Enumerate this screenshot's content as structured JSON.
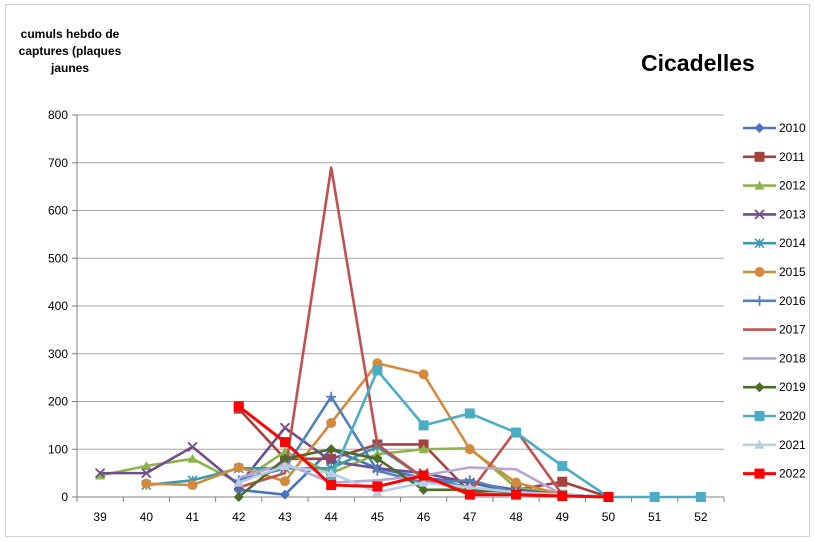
{
  "chart_data": {
    "type": "line",
    "title": "Cicadelles",
    "ylabel": "cumuls hebdo de captures (plaques jaunes",
    "xlabel": "",
    "x": [
      39,
      40,
      41,
      42,
      43,
      44,
      45,
      46,
      47,
      48,
      49,
      50,
      51,
      52
    ],
    "ylim": [
      0,
      800
    ],
    "yticks": [
      0,
      100,
      200,
      300,
      400,
      500,
      600,
      700,
      800
    ],
    "grid": "horizontal",
    "legend_position": "right",
    "series": [
      {
        "name": "2010",
        "color": "#4472C4",
        "marker": "diamond",
        "values": [
          null,
          null,
          null,
          15,
          5,
          100,
          60,
          40,
          30,
          10,
          5,
          null,
          null,
          null
        ]
      },
      {
        "name": "2011",
        "color": "#A5413F",
        "marker": "square",
        "values": [
          null,
          null,
          null,
          185,
          80,
          80,
          110,
          110,
          10,
          15,
          32,
          0,
          null,
          null
        ]
      },
      {
        "name": "2012",
        "color": "#8FB34B",
        "marker": "triangle",
        "values": [
          45,
          65,
          80,
          30,
          95,
          50,
          90,
          100,
          102,
          20,
          5,
          0,
          null,
          null
        ]
      },
      {
        "name": "2013",
        "color": "#6F4E8C",
        "marker": "x",
        "values": [
          50,
          50,
          105,
          25,
          145,
          75,
          60,
          50,
          30,
          15,
          5,
          0,
          null,
          null
        ]
      },
      {
        "name": "2014",
        "color": "#3C9BAA",
        "marker": "asterisk",
        "values": [
          null,
          25,
          35,
          60,
          60,
          60,
          105,
          40,
          20,
          10,
          5,
          0,
          null,
          null
        ]
      },
      {
        "name": "2015",
        "color": "#D38A3C",
        "marker": "circle",
        "values": [
          null,
          28,
          25,
          62,
          33,
          155,
          280,
          257,
          100,
          30,
          5,
          0,
          null,
          null
        ]
      },
      {
        "name": "2016",
        "color": "#4F81BD",
        "marker": "plus",
        "values": [
          null,
          null,
          null,
          35,
          60,
          210,
          55,
          30,
          35,
          10,
          5,
          0,
          null,
          null
        ]
      },
      {
        "name": "2017",
        "color": "#C0504D",
        "marker": "none",
        "values": [
          null,
          null,
          null,
          20,
          50,
          690,
          110,
          40,
          10,
          140,
          5,
          0,
          null,
          null
        ]
      },
      {
        "name": "2018",
        "color": "#B4A7D6",
        "marker": "none",
        "values": [
          null,
          null,
          null,
          40,
          70,
          30,
          35,
          45,
          62,
          58,
          5,
          0,
          null,
          null
        ]
      },
      {
        "name": "2019",
        "color": "#4E6B2A",
        "marker": "diamond",
        "values": [
          null,
          null,
          null,
          0,
          80,
          100,
          80,
          15,
          15,
          10,
          5,
          0,
          null,
          null
        ]
      },
      {
        "name": "2020",
        "color": "#4BACC6",
        "marker": "square",
        "values": [
          null,
          null,
          null,
          null,
          null,
          40,
          265,
          150,
          175,
          135,
          65,
          0,
          0,
          0
        ]
      },
      {
        "name": "2021",
        "color": "#B9CDE5",
        "marker": "triangle",
        "values": [
          null,
          null,
          null,
          30,
          65,
          50,
          10,
          30,
          20,
          10,
          5,
          0,
          null,
          null
        ]
      },
      {
        "name": "2022",
        "color": "#FF0000",
        "marker": "square",
        "values": [
          null,
          null,
          null,
          190,
          115,
          25,
          22,
          45,
          5,
          5,
          2,
          0,
          null,
          null
        ]
      }
    ]
  }
}
